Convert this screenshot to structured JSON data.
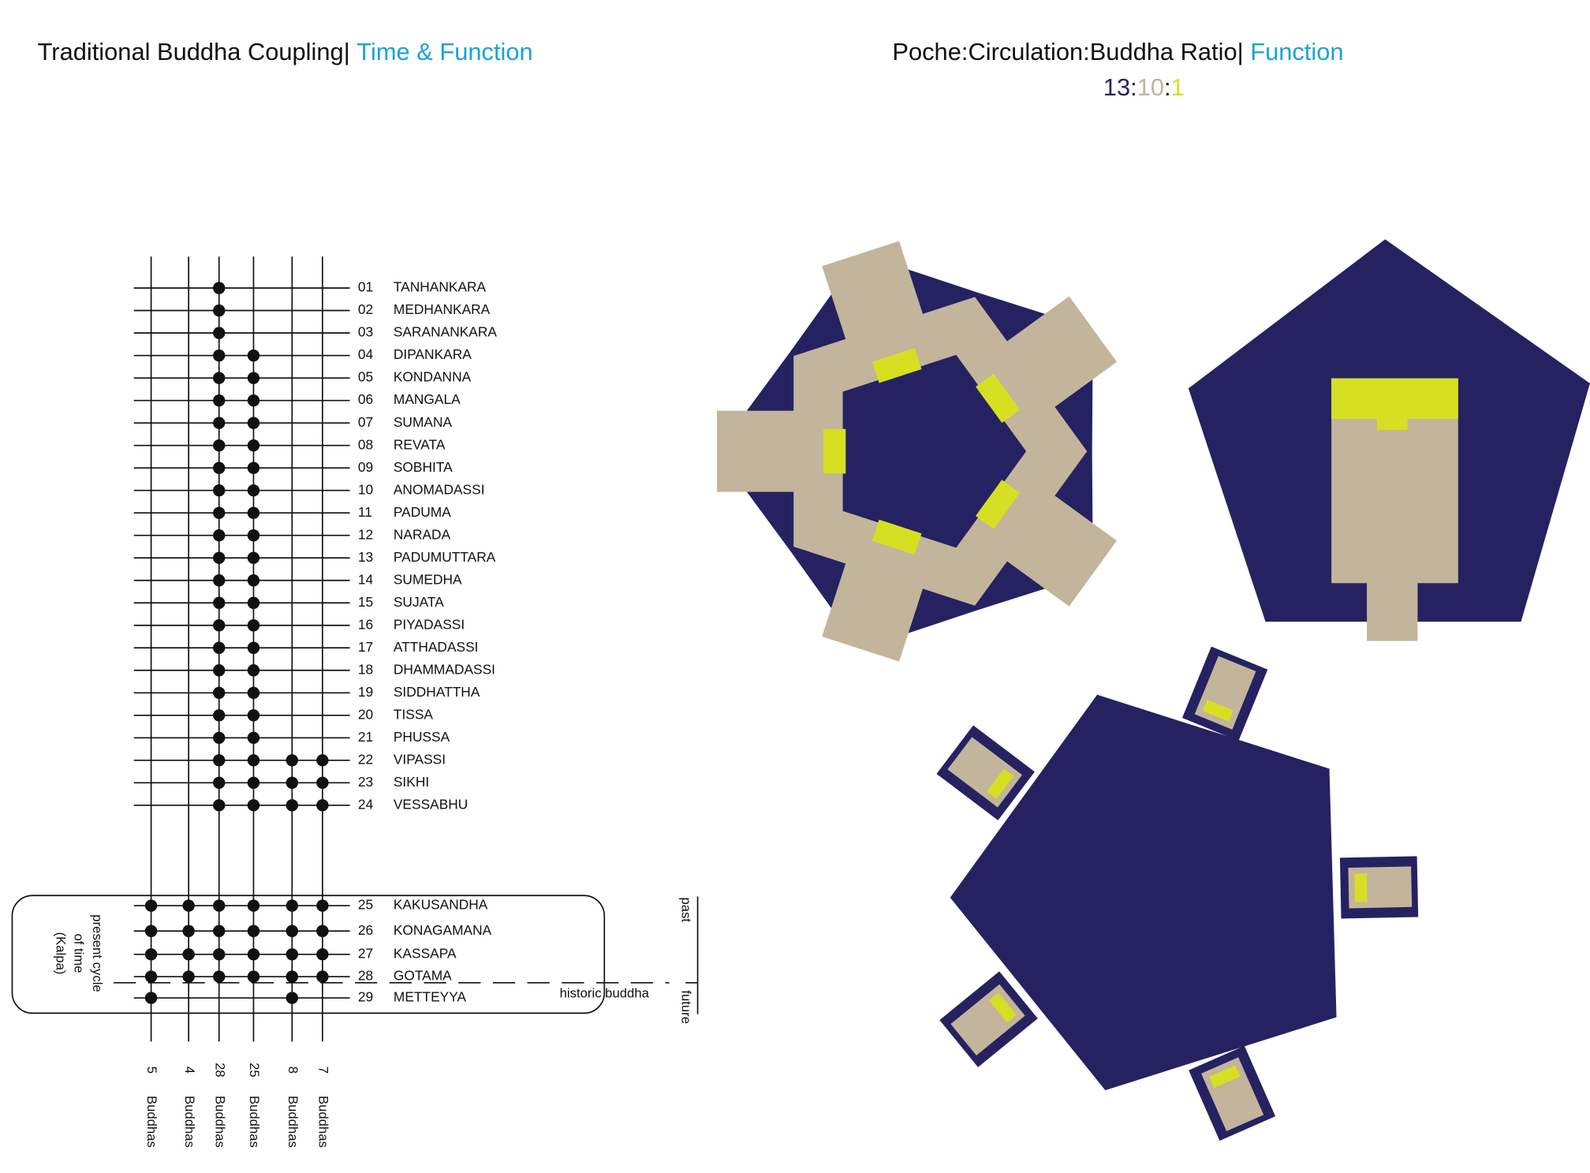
{
  "header": {
    "left_title": "Traditional Buddha Coupling| ",
    "left_subtitle": "Time & Function",
    "right_title": "Poche:Circulation:Buddha Ratio| ",
    "right_subtitle": "Function",
    "ratio": {
      "poche": 13,
      "circulation": 10,
      "buddha": 1,
      "separator": ":"
    }
  },
  "buddhas": [
    {
      "number": "01",
      "name": "TANHANKARA"
    },
    {
      "number": "02",
      "name": "MEDHANKARA"
    },
    {
      "number": "03",
      "name": "SARANANKARA"
    },
    {
      "number": "04",
      "name": "DIPANKARA"
    },
    {
      "number": "05",
      "name": "KONDANNA"
    },
    {
      "number": "06",
      "name": "MANGALA"
    },
    {
      "number": "07",
      "name": "SUMANA"
    },
    {
      "number": "08",
      "name": "REVATA"
    },
    {
      "number": "09",
      "name": "SOBHITA"
    },
    {
      "number": "10",
      "name": "ANOMADASSI"
    },
    {
      "number": "11",
      "name": "PADUMA"
    },
    {
      "number": "12",
      "name": "NARADA"
    },
    {
      "number": "13",
      "name": "PADUMUTTARA"
    },
    {
      "number": "14",
      "name": "SUMEDHA"
    },
    {
      "number": "15",
      "name": "SUJATA"
    },
    {
      "number": "16",
      "name": "PIYADASSI"
    },
    {
      "number": "17",
      "name": "ATTHADASSI"
    },
    {
      "number": "18",
      "name": "DHAMMADASSI"
    },
    {
      "number": "19",
      "name": "SIDDHATTHA"
    },
    {
      "number": "20",
      "name": "TISSA"
    },
    {
      "number": "21",
      "name": "PHUSSA"
    },
    {
      "number": "22",
      "name": "VIPASSI"
    },
    {
      "number": "23",
      "name": "SIKHI"
    },
    {
      "number": "24",
      "name": "VESSABHU"
    },
    {
      "number": "25",
      "name": "KAKUSANDHA"
    },
    {
      "number": "26",
      "name": "KONAGAMANA"
    },
    {
      "number": "27",
      "name": "KASSAPA"
    },
    {
      "number": "28",
      "name": "GOTAMA"
    },
    {
      "number": "29",
      "name": "METTEYYA"
    }
  ],
  "columns": [
    {
      "count": 5,
      "unit": "Buddhas"
    },
    {
      "count": 4,
      "unit": "Buddhas"
    },
    {
      "count": 28,
      "unit": "Buddhas"
    },
    {
      "count": 25,
      "unit": "Buddhas"
    },
    {
      "count": 8,
      "unit": "Buddhas"
    },
    {
      "count": 7,
      "unit": "Buddhas"
    }
  ],
  "annotations": {
    "kalpa": [
      "present cycle",
      "of time",
      "(Kalpa)"
    ],
    "past": "past",
    "future": "future",
    "historic": "historic buddha"
  }
}
